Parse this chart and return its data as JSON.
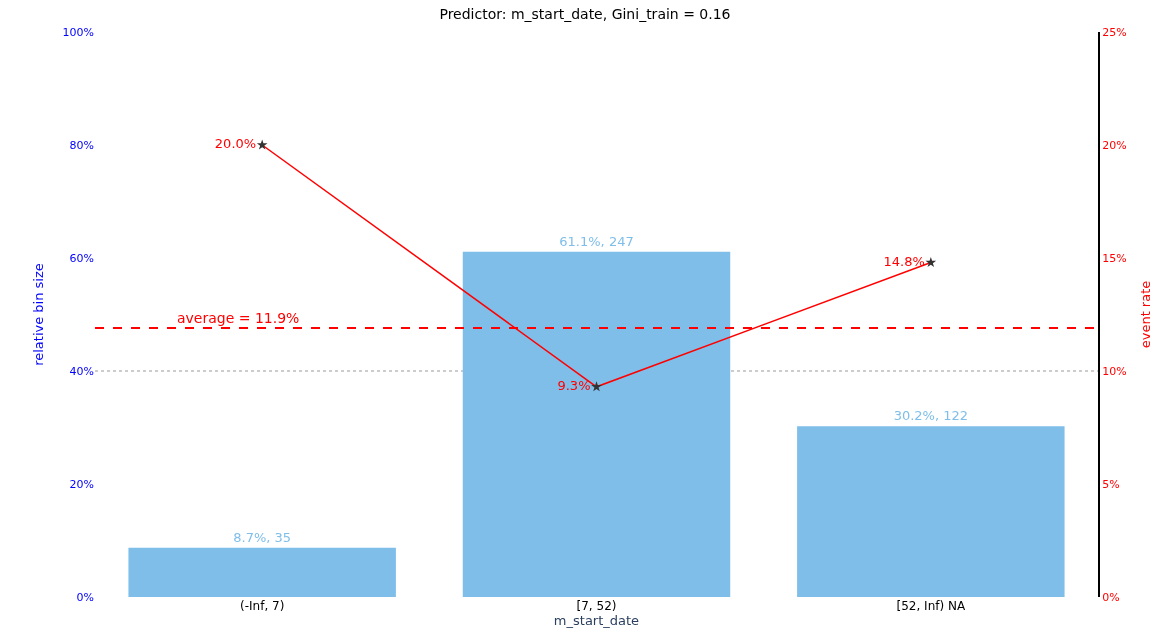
{
  "chart_data": {
    "type": "bar",
    "title": "Predictor: m_start_date, Gini_train = 0.16",
    "xlabel": "m_start_date",
    "ylabel": "relative bin size",
    "y2label": "event rate",
    "categories": [
      "(-Inf, 7)",
      "[7, 52)",
      "[52, Inf) NA"
    ],
    "series": [
      {
        "color": "#7fbee9",
        "values": [
          8.7,
          61.1,
          30.2
        ],
        "value_labels": [
          "8.7%, 35",
          "61.1%, 247",
          "30.2%, 122"
        ]
      },
      {
        "type": "line",
        "axis": "y2",
        "color": "#ff0000",
        "values": [
          20.0,
          9.3,
          14.8
        ],
        "value_labels": [
          "20.0%",
          "9.3%",
          "14.8%"
        ],
        "marker": "star"
      }
    ],
    "ylim": [
      0,
      100
    ],
    "yticks": [
      {
        "value": 0,
        "label": "0%"
      },
      {
        "value": 20,
        "label": "20%"
      },
      {
        "value": 40,
        "label": "40%"
      },
      {
        "value": 60,
        "label": "60%"
      },
      {
        "value": 80,
        "label": "80%"
      },
      {
        "value": 100,
        "label": "100%"
      }
    ],
    "y2lim": [
      0,
      25
    ],
    "y2ticks": [
      {
        "value": 0,
        "label": "0%"
      },
      {
        "value": 5,
        "label": "5%"
      },
      {
        "value": 10,
        "label": "10%"
      },
      {
        "value": 15,
        "label": "15%"
      },
      {
        "value": 20,
        "label": "20%"
      },
      {
        "value": 25,
        "label": "25%"
      }
    ],
    "ref_lines": [
      {
        "axis": "y2",
        "value": 11.9,
        "label": "average = 11.9%",
        "color": "#ff0000",
        "line_style": "dashed"
      },
      {
        "axis": "y",
        "value": 40,
        "color": "#999999",
        "line_style": "dotted"
      }
    ],
    "grid": false
  }
}
